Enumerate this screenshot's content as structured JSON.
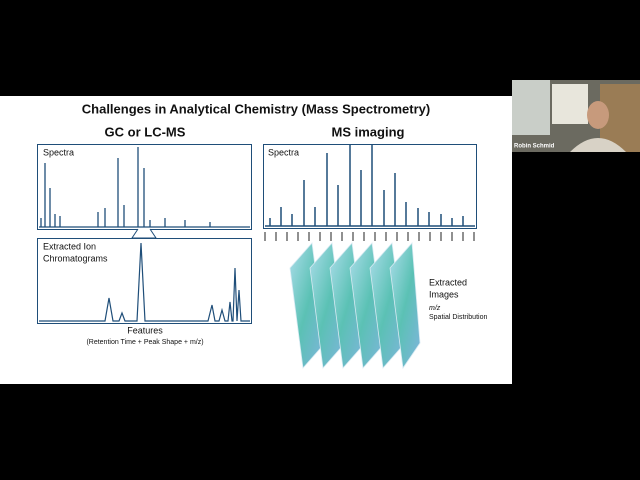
{
  "slide": {
    "title": "Challenges in Analytical Chemistry (Mass Spectrometry)",
    "left": {
      "heading": "GC or LC-MS",
      "spectra_label": "Spectra",
      "eic_label": [
        "Extracted Ion",
        "Chromatograms"
      ],
      "features": "Features",
      "features_note": "(Retention Time + Peak Shape + m/z)"
    },
    "right": {
      "heading": "MS imaging",
      "spectra_label": "Spectra",
      "images_label": [
        "Extracted",
        "Images"
      ],
      "mz": "m/z",
      "spatial": "Spatial Distribution"
    }
  },
  "participant": {
    "name": "Robin Schmid"
  }
}
